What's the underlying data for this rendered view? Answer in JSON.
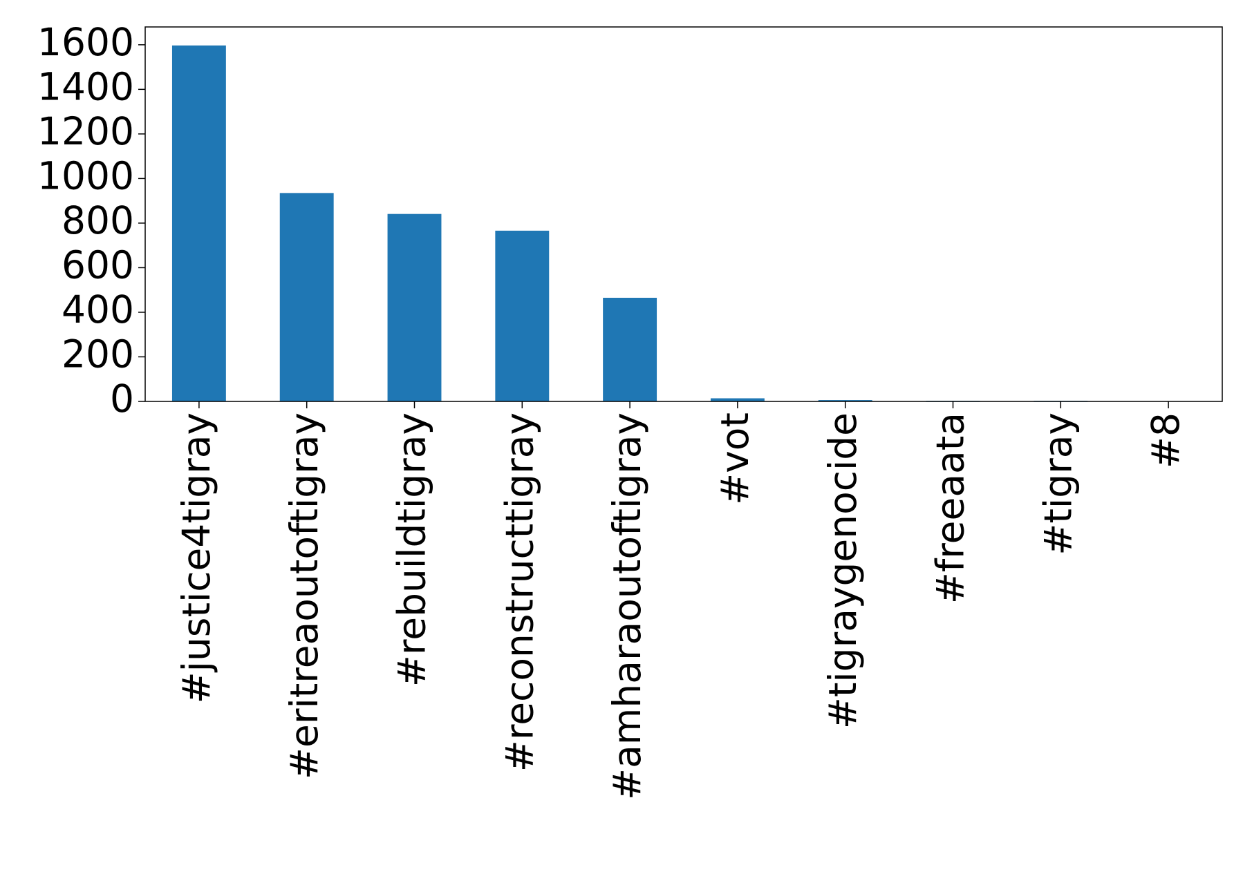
{
  "chart_data": {
    "type": "bar",
    "categories": [
      "#justice4tigray",
      "#eritreaoutoftigray",
      "#rebuildtigray",
      "#reconstructtigray",
      "#amharaoutoftigray",
      "#vot",
      "#tigraygenocide",
      "#freeaata",
      "#tigray",
      "#8"
    ],
    "values": [
      1597,
      935,
      841,
      766,
      465,
      14,
      6,
      3,
      3,
      1
    ],
    "color": "#1f77b4",
    "ylim": [
      0,
      1680
    ],
    "yticks": [
      0,
      200,
      400,
      600,
      800,
      1000,
      1200,
      1400,
      1600
    ]
  }
}
